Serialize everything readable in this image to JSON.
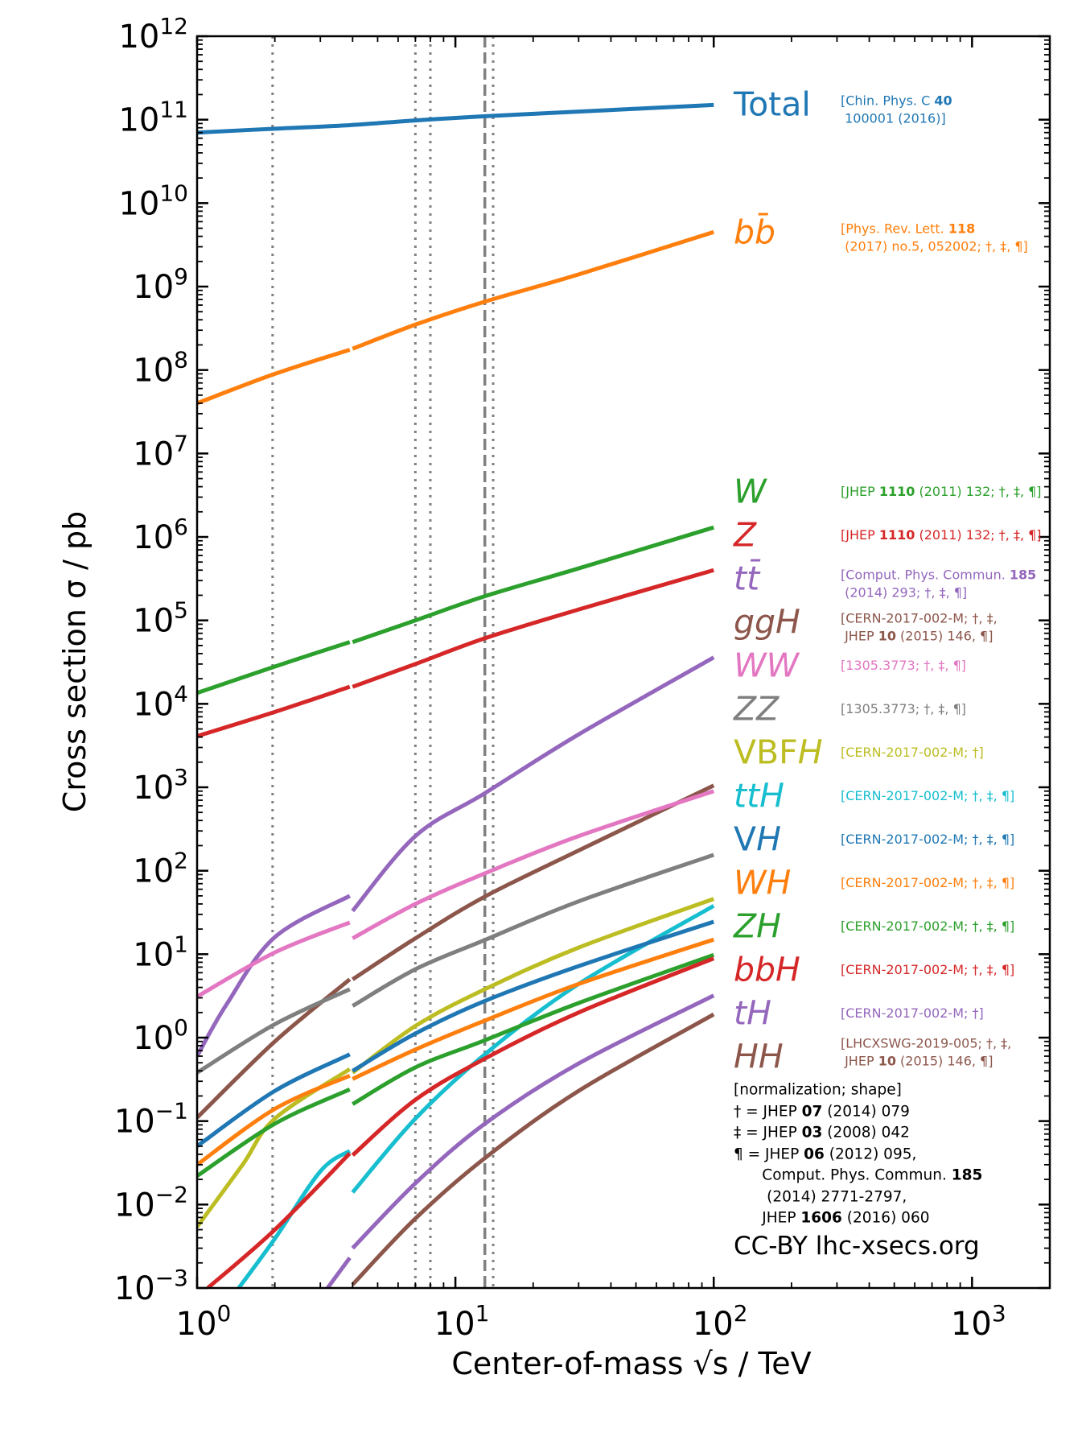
{
  "chart_data": {
    "type": "line",
    "title": "",
    "xlabel": "Center-of-mass √s / TeV",
    "ylabel": "Cross section σ / pb",
    "xscale": "log",
    "yscale": "log",
    "xlim": [
      1,
      2000
    ],
    "ylim": [
      0.001,
      1000000000000.0
    ],
    "xticks": [
      1,
      10,
      100,
      1000
    ],
    "xtick_labels": [
      "10^0",
      "10^1",
      "10^2",
      "10^3"
    ],
    "yticks": [
      0.001,
      0.01,
      0.1,
      1,
      10,
      100,
      1000.0,
      10000.0,
      100000.0,
      1000000.0,
      10000000.0,
      100000000.0,
      1000000000.0,
      10000000000.0,
      100000000000.0,
      1000000000000.0
    ],
    "ytick_labels": [
      "10^-3",
      "10^-2",
      "10^-1",
      "10^0",
      "10^1",
      "10^2",
      "10^3",
      "10^4",
      "10^5",
      "10^6",
      "10^7",
      "10^8",
      "10^9",
      "10^10",
      "10^11",
      "10^12"
    ],
    "grid": false,
    "vlines": [
      {
        "x": 1.96,
        "style": "dotted",
        "color": "#808080"
      },
      {
        "x": 7,
        "style": "dotted",
        "color": "#808080"
      },
      {
        "x": 8,
        "style": "dotted",
        "color": "#808080"
      },
      {
        "x": 13,
        "style": "dashed",
        "color": "#808080"
      },
      {
        "x": 14,
        "style": "dotted",
        "color": "#808080"
      }
    ],
    "series": [
      {
        "name": "Total",
        "label": [
          {
            "t": "Total"
          }
        ],
        "color": "#1f77b4",
        "ref": [
          [
            {
              "t": "[Chin. Phys. C "
            },
            {
              "t": "40",
              "b": true
            }
          ],
          [
            {
              "t": " 100001 (2016)]"
            }
          ]
        ],
        "segments": [
          [
            [
              1,
              70000000000.0
            ],
            [
              2,
              78000000000.0
            ],
            [
              3.9,
              86000000000.0
            ],
            [
              7,
              98000000000.0
            ],
            [
              13,
              110000000000.0
            ],
            [
              30,
              125000000000.0
            ],
            [
              100,
              150000000000.0
            ]
          ]
        ]
      },
      {
        "name": "bb̄",
        "label": [
          {
            "t": "bb̄",
            "i": true
          }
        ],
        "color": "#ff7f0e",
        "ref": [
          [
            {
              "t": "[Phys. Rev. Lett. "
            },
            {
              "t": "118",
              "b": true
            }
          ],
          [
            {
              "t": " (2017) no.5, 052002; †, ‡, ¶]"
            }
          ]
        ],
        "segments": [
          [
            [
              1,
              40000000.0
            ],
            [
              2,
              90000000.0
            ],
            [
              3.9,
              175000000.0
            ]
          ],
          [
            [
              4,
              180000000.0
            ],
            [
              7,
              350000000.0
            ],
            [
              13,
              660000000.0
            ],
            [
              30,
              1400000000.0
            ],
            [
              100,
              4500000000.0
            ]
          ]
        ]
      },
      {
        "name": "W",
        "label": [
          {
            "t": "W",
            "i": true
          }
        ],
        "color": "#2ca02c",
        "ref": [
          [
            {
              "t": "[JHEP "
            },
            {
              "t": "1110",
              "b": true
            },
            {
              "t": " (2011) 132; †, ‡, ¶]"
            }
          ]
        ],
        "segments": [
          [
            [
              1,
              13500.0
            ],
            [
              2,
              28000.0
            ],
            [
              3.9,
              55000.0
            ]
          ],
          [
            [
              4,
              55000.0
            ],
            [
              7,
              100000.0
            ],
            [
              13,
              195000.0
            ],
            [
              30,
              420000.0
            ],
            [
              100,
              1300000.0
            ]
          ]
        ]
      },
      {
        "name": "Z",
        "label": [
          {
            "t": "Z",
            "i": true
          }
        ],
        "color": "#d62728",
        "ref": [
          [
            {
              "t": "[JHEP "
            },
            {
              "t": "1110",
              "b": true
            },
            {
              "t": " (2011) 132; †, ‡, ¶]"
            }
          ]
        ],
        "segments": [
          [
            [
              1,
              4100.0
            ],
            [
              2,
              8000.0
            ],
            [
              3.9,
              16000.0
            ]
          ],
          [
            [
              4,
              16000.0
            ],
            [
              7,
              30000.0
            ],
            [
              13,
              61000.0
            ],
            [
              30,
              135000.0
            ],
            [
              100,
              400000.0
            ]
          ]
        ]
      },
      {
        "name": "tt̄",
        "label": [
          {
            "t": "tt̄",
            "i": true
          }
        ],
        "color": "#9467bd",
        "ref": [
          [
            {
              "t": "[Comput. Phys. Commun. "
            },
            {
              "t": "185",
              "b": true
            }
          ],
          [
            {
              "t": " (2014) 293; †, ‡, ¶]"
            }
          ]
        ],
        "segments": [
          [
            [
              1,
              0.6
            ],
            [
              1.3,
              2.5
            ],
            [
              2,
              16
            ],
            [
              3.9,
              50
            ]
          ],
          [
            [
              4,
              33
            ],
            [
              7,
              260
            ],
            [
              13,
              850
            ],
            [
              30,
              4300
            ],
            [
              100,
              36000
            ]
          ]
        ]
      },
      {
        "name": "ggH",
        "label": [
          {
            "t": "ggH",
            "i": true
          }
        ],
        "color": "#8c564b",
        "ref": [
          [
            {
              "t": "[CERN-2017-002-M; †, ‡,"
            }
          ],
          [
            {
              "t": " JHEP "
            },
            {
              "t": "10",
              "b": true
            },
            {
              "t": " (2015) 146, ¶]"
            }
          ]
        ],
        "segments": [
          [
            [
              1,
              0.11
            ],
            [
              2,
              0.9
            ],
            [
              3.9,
              5
            ]
          ],
          [
            [
              4,
              5
            ],
            [
              7,
              15.5
            ],
            [
              13,
              49
            ],
            [
              30,
              175
            ],
            [
              100,
              1050
            ]
          ]
        ]
      },
      {
        "name": "WW",
        "label": [
          {
            "t": "WW",
            "i": true
          }
        ],
        "color": "#e377c2",
        "ref": [
          [
            {
              "t": "[1305.3773; †, ‡, ¶]"
            }
          ]
        ],
        "segments": [
          [
            [
              1,
              3.1
            ],
            [
              2,
              10.5
            ],
            [
              3.9,
              24
            ]
          ],
          [
            [
              4,
              15.5
            ],
            [
              7,
              40
            ],
            [
              13,
              93
            ],
            [
              30,
              260
            ],
            [
              100,
              900
            ]
          ]
        ]
      },
      {
        "name": "ZZ",
        "label": [
          {
            "t": "ZZ",
            "i": true
          }
        ],
        "color": "#7f7f7f",
        "ref": [
          [
            {
              "t": "[1305.3773; †, ‡, ¶]"
            }
          ]
        ],
        "segments": [
          [
            [
              1,
              0.38
            ],
            [
              2,
              1.45
            ],
            [
              3.9,
              3.8
            ]
          ],
          [
            [
              4,
              2.4
            ],
            [
              7,
              6.6
            ],
            [
              13,
              14.8
            ],
            [
              30,
              43
            ],
            [
              100,
              155
            ]
          ]
        ]
      },
      {
        "name": "VBFH",
        "label": [
          {
            "t": "VBF"
          },
          {
            "t": "H",
            "i": true
          }
        ],
        "color": "#bcbd22",
        "ref": [
          [
            {
              "t": "[CERN-2017-002-M; †]"
            }
          ]
        ],
        "segments": [
          [
            [
              1,
              0.0054
            ],
            [
              1.5,
              0.03
            ],
            [
              2,
              0.107
            ],
            [
              3.9,
              0.42
            ]
          ],
          [
            [
              4,
              0.38
            ],
            [
              7,
              1.38
            ],
            [
              13,
              3.8
            ],
            [
              30,
              12
            ],
            [
              100,
              46
            ]
          ]
        ]
      },
      {
        "name": "ttH",
        "label": [
          {
            "t": "ttH",
            "i": true
          }
        ],
        "color": "#17becf",
        "ref": [
          [
            {
              "t": "[CERN-2017-002-M; †, ‡, ¶]"
            }
          ]
        ],
        "segments": [
          [
            [
              1.45,
              0.001
            ],
            [
              2,
              0.0039
            ],
            [
              3,
              0.025
            ],
            [
              3.9,
              0.044
            ]
          ],
          [
            [
              4,
              0.014
            ],
            [
              7,
              0.107
            ],
            [
              13,
              0.63
            ],
            [
              30,
              4.4
            ],
            [
              100,
              38
            ]
          ]
        ]
      },
      {
        "name": "VH",
        "label": [
          {
            "t": "V"
          },
          {
            "t": "H",
            "i": true
          }
        ],
        "color": "#1f77b4",
        "ref": [
          [
            {
              "t": "[CERN-2017-002-M; †, ‡, ¶]"
            }
          ]
        ],
        "segments": [
          [
            [
              1,
              0.05
            ],
            [
              2,
              0.23
            ],
            [
              3.9,
              0.63
            ]
          ],
          [
            [
              4,
              0.4
            ],
            [
              7,
              1.12
            ],
            [
              13,
              2.75
            ],
            [
              30,
              7.2
            ],
            [
              100,
              24.5
            ]
          ]
        ]
      },
      {
        "name": "WH",
        "label": [
          {
            "t": "WH",
            "i": true
          }
        ],
        "color": "#ff7f0e",
        "ref": [
          [
            {
              "t": "[CERN-2017-002-M; †, ‡, ¶]"
            }
          ]
        ],
        "segments": [
          [
            [
              1,
              0.03
            ],
            [
              2,
              0.14
            ],
            [
              3.9,
              0.35
            ]
          ],
          [
            [
              4,
              0.32
            ],
            [
              7,
              0.72
            ],
            [
              13,
              1.6
            ],
            [
              30,
              4.4
            ],
            [
              100,
              15
            ]
          ]
        ]
      },
      {
        "name": "ZH",
        "label": [
          {
            "t": "ZH",
            "i": true
          }
        ],
        "color": "#2ca02c",
        "ref": [
          [
            {
              "t": "[CERN-2017-002-M; †, ‡, ¶]"
            }
          ]
        ],
        "segments": [
          [
            [
              1,
              0.022
            ],
            [
              2,
              0.093
            ],
            [
              3.9,
              0.24
            ]
          ],
          [
            [
              4,
              0.16
            ],
            [
              7,
              0.44
            ],
            [
              13,
              0.93
            ],
            [
              30,
              2.6
            ],
            [
              100,
              9.8
            ]
          ]
        ]
      },
      {
        "name": "bbH",
        "label": [
          {
            "t": "bbH",
            "i": true
          }
        ],
        "color": "#d62728",
        "ref": [
          [
            {
              "t": "[CERN-2017-002-M; †, ‡, ¶]"
            }
          ]
        ],
        "segments": [
          [
            [
              1.1,
              0.001
            ],
            [
              2,
              0.005
            ],
            [
              3.9,
              0.041
            ]
          ],
          [
            [
              4,
              0.039
            ],
            [
              7,
              0.18
            ],
            [
              13,
              0.56
            ],
            [
              30,
              2.0
            ],
            [
              100,
              8.9
            ]
          ]
        ]
      },
      {
        "name": "tH",
        "label": [
          {
            "t": "tH",
            "i": true
          }
        ],
        "color": "#9467bd",
        "ref": [
          [
            {
              "t": "[CERN-2017-002-M; †]"
            }
          ]
        ],
        "segments": [
          [
            [
              3.2,
              0.001
            ],
            [
              3.9,
              0.0023
            ]
          ],
          [
            [
              4,
              0.003
            ],
            [
              7,
              0.018
            ],
            [
              13,
              0.093
            ],
            [
              30,
              0.49
            ],
            [
              100,
              3.2
            ]
          ]
        ]
      },
      {
        "name": "HH",
        "label": [
          {
            "t": "HH",
            "i": true
          }
        ],
        "color": "#8c564b",
        "ref": [
          [
            {
              "t": "[LHCXSWG-2019-005; †, ‡,"
            }
          ],
          [
            {
              "t": " JHEP "
            },
            {
              "t": "10",
              "b": true
            },
            {
              "t": " (2015) 146, ¶]"
            }
          ]
        ],
        "segments": [
          [
            [
              4,
              0.0011
            ],
            [
              7,
              0.0068
            ],
            [
              13,
              0.036
            ],
            [
              30,
              0.23
            ],
            [
              100,
              1.9
            ]
          ]
        ]
      }
    ],
    "footnote": [
      [
        {
          "t": "[normalization; shape]"
        }
      ],
      [
        {
          "t": "† = JHEP "
        },
        {
          "t": "07",
          "b": true
        },
        {
          "t": " (2014) 079"
        }
      ],
      [
        {
          "t": "‡ = JHEP "
        },
        {
          "t": "03",
          "b": true
        },
        {
          "t": " (2008) 042"
        }
      ],
      [
        {
          "t": "¶ = JHEP "
        },
        {
          "t": "06",
          "b": true
        },
        {
          "t": " (2012) 095,"
        }
      ],
      [
        {
          "t": "      Comput. Phys. Commun. "
        },
        {
          "t": "185",
          "b": true
        }
      ],
      [
        {
          "t": "       (2014) 2771-2797,"
        }
      ],
      [
        {
          "t": "      JHEP "
        },
        {
          "t": "1606",
          "b": true
        },
        {
          "t": " (2016) 060"
        }
      ]
    ],
    "credit": "CC-BY lhc-xsecs.org"
  }
}
